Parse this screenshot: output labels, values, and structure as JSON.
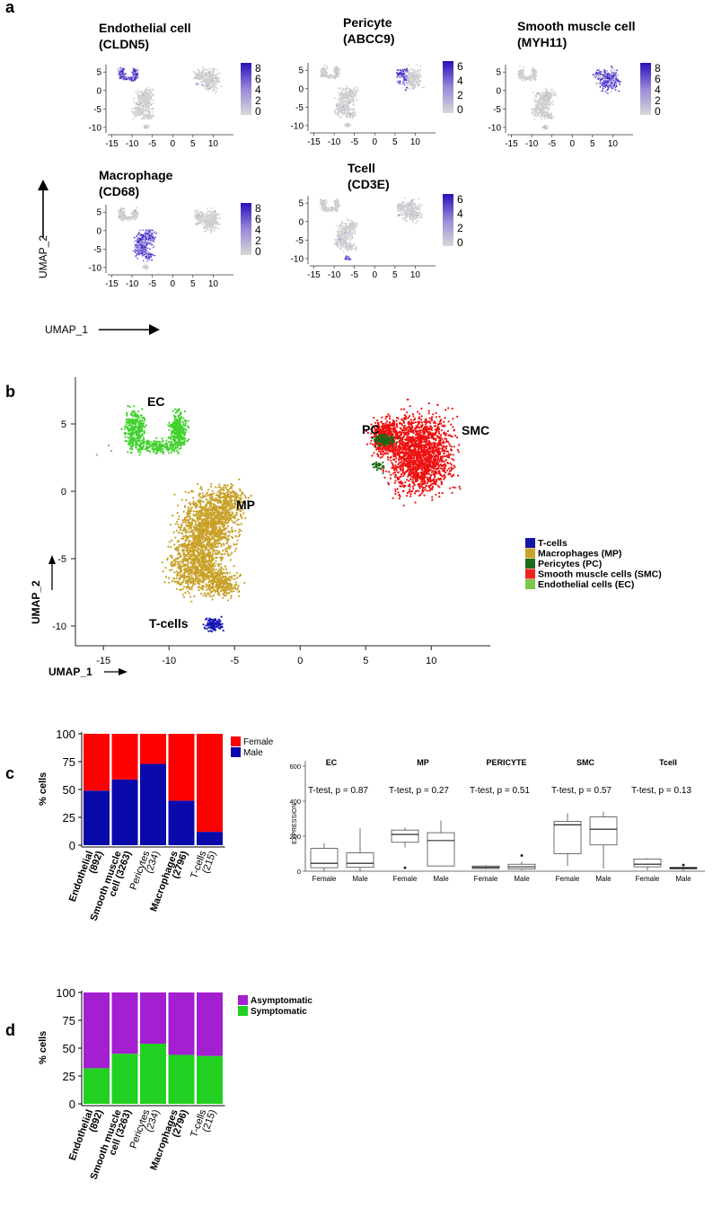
{
  "panel_letters": {
    "a": "a",
    "b": "b",
    "c": "c",
    "d": "d"
  },
  "umap_small_plots": [
    {
      "title1": "Endothelial cell",
      "title2": "(CLDN5)",
      "x_ticks": [
        "-15",
        "-10",
        "-5",
        "0",
        "5",
        "10"
      ],
      "y_ticks": [
        "5",
        "0",
        "-5",
        "-10"
      ],
      "legend_ticks": [
        "8",
        "6",
        "4",
        "2",
        "0"
      ]
    },
    {
      "title1": "Pericyte",
      "title2": "(ABCC9)",
      "x_ticks": [
        "-15",
        "-10",
        "-5",
        "0",
        "5",
        "10"
      ],
      "y_ticks": [
        "5",
        "0",
        "-5",
        "-10"
      ],
      "legend_ticks": [
        "6",
        "4",
        "2",
        "0"
      ]
    },
    {
      "title1": "Smooth muscle cell",
      "title2": "(MYH11)",
      "x_ticks": [
        "-15",
        "-10",
        "-5",
        "0",
        "5",
        "10"
      ],
      "y_ticks": [
        "5",
        "0",
        "-5",
        "-10"
      ],
      "legend_ticks": [
        "8",
        "6",
        "4",
        "2",
        "0"
      ]
    },
    {
      "title1": "Macrophage",
      "title2": "(CD68)",
      "x_ticks": [
        "-15",
        "-10",
        "-5",
        "0",
        "5",
        "10"
      ],
      "y_ticks": [
        "5",
        "0",
        "-5",
        "-10"
      ],
      "legend_ticks": [
        "8",
        "6",
        "4",
        "2",
        "0"
      ]
    },
    {
      "title1": "Tcell",
      "title2": "(CD3E)",
      "x_ticks": [
        "-15",
        "-10",
        "-5",
        "0",
        "5",
        "10"
      ],
      "y_ticks": [
        "5",
        "0",
        "-5",
        "-10"
      ],
      "legend_ticks": [
        "6",
        "4",
        "2",
        "0"
      ]
    }
  ],
  "axis_labels": {
    "umap1": "UMAP_1",
    "umap2": "UMAP_2"
  },
  "umap_main": {
    "x_ticks": [
      "-15",
      "-10",
      "-5",
      "0",
      "5",
      "10"
    ],
    "y_ticks": [
      "5",
      "0",
      "-5",
      "-10"
    ],
    "cluster_labels": {
      "ec": "EC",
      "pc": "PC",
      "smc": "SMC",
      "mp": "MP",
      "tcells": "T-cells"
    },
    "legend": [
      {
        "label": "T-cells",
        "color": "#1414a8"
      },
      {
        "label": "Macrophages (MP)",
        "color": "#c9a227"
      },
      {
        "label": "Pericytes (PC)",
        "color": "#1e6b1e"
      },
      {
        "label": "Smooth muscle cells (SMC)",
        "color": "#ee2222"
      },
      {
        "label": "Endothelial cells (EC)",
        "color": "#7cc84a"
      }
    ]
  },
  "chart_data": [
    {
      "type": "bar",
      "title": "",
      "ylabel": "% cells",
      "ylim": [
        0,
        100
      ],
      "y_ticks": [
        "100",
        "75",
        "50",
        "25",
        "0"
      ],
      "categories": [
        "Endothelial (892)",
        "Smooth muscle cell (3263)",
        "Pericytes (234)",
        "Macrophages (2796)",
        "T-cells (215)"
      ],
      "category_lines": [
        [
          "Endothelial",
          "(892)"
        ],
        [
          "Smooth muscle",
          "cell (3263)"
        ],
        [
          "Pericytes",
          "(234)"
        ],
        [
          "Macrophages",
          "(2796)"
        ],
        [
          "T-cells",
          "(215)"
        ]
      ],
      "series": [
        {
          "name": "Male",
          "color": "#0a0aaa",
          "values": [
            49,
            59,
            73,
            40,
            12
          ]
        },
        {
          "name": "Female",
          "color": "#ff0000",
          "values": [
            51,
            41,
            27,
            60,
            88
          ]
        }
      ],
      "legend": [
        "Female",
        "Male"
      ]
    },
    {
      "type": "box",
      "ylabel": "EXPRESSION",
      "ylim": [
        0,
        600
      ],
      "y_ticks": [
        "600",
        "400",
        "200",
        "0"
      ],
      "groups": [
        {
          "name": "EC",
          "pvalue": "T-test, p = 0.87",
          "boxes": [
            {
              "label": "Female",
              "min": 0,
              "q1": 20,
              "median": 45,
              "q3": 130,
              "max": 160,
              "outliers": []
            },
            {
              "label": "Male",
              "min": 0,
              "q1": 22,
              "median": 45,
              "q3": 105,
              "max": 245,
              "outliers": []
            }
          ]
        },
        {
          "name": "MP",
          "pvalue": "T-test, p = 0.27",
          "boxes": [
            {
              "label": "Female",
              "min": 135,
              "q1": 165,
              "median": 210,
              "q3": 235,
              "max": 250,
              "outliers": [
                20
              ]
            },
            {
              "label": "Male",
              "min": 30,
              "q1": 30,
              "median": 175,
              "q3": 220,
              "max": 290,
              "outliers": []
            }
          ]
        },
        {
          "name": "PERICYTE",
          "pvalue": "T-test, p = 0.51",
          "boxes": [
            {
              "label": "Female",
              "min": 10,
              "q1": 15,
              "median": 22,
              "q3": 30,
              "max": 35,
              "outliers": []
            },
            {
              "label": "Male",
              "min": 5,
              "q1": 12,
              "median": 25,
              "q3": 40,
              "max": 55,
              "outliers": [
                90
              ]
            }
          ]
        },
        {
          "name": "SMC",
          "pvalue": "T-test, p = 0.57",
          "boxes": [
            {
              "label": "Female",
              "min": 30,
              "q1": 100,
              "median": 265,
              "q3": 285,
              "max": 330,
              "outliers": []
            },
            {
              "label": "Male",
              "min": 15,
              "q1": 150,
              "median": 240,
              "q3": 310,
              "max": 340,
              "outliers": []
            }
          ]
        },
        {
          "name": "Tcell",
          "pvalue": "T-test, p = 0.13",
          "boxes": [
            {
              "label": "Female",
              "min": 5,
              "q1": 25,
              "median": 40,
              "q3": 70,
              "max": 75,
              "outliers": []
            },
            {
              "label": "Male",
              "min": 3,
              "q1": 12,
              "median": 18,
              "q3": 22,
              "max": 25,
              "outliers": [
                35
              ]
            }
          ]
        }
      ]
    },
    {
      "type": "bar",
      "ylabel": "% cells",
      "ylim": [
        0,
        100
      ],
      "y_ticks": [
        "100",
        "75",
        "50",
        "25",
        "0"
      ],
      "categories": [
        "Endothelial (892)",
        "Smooth muscle cell (3263)",
        "Pericytes (234)",
        "Macrophages (2796)",
        "T-cells (215)"
      ],
      "category_lines": [
        [
          "Endothelial",
          "(892)"
        ],
        [
          "Smooth muscle",
          "cell (3263)"
        ],
        [
          "Pericytes",
          "(234)"
        ],
        [
          "Macrophages",
          "(2796)"
        ],
        [
          "T-cells",
          "(215)"
        ]
      ],
      "series": [
        {
          "name": "Symptomatic",
          "color": "#22d022",
          "values": [
            32,
            45,
            54,
            44,
            43
          ]
        },
        {
          "name": "Asymptomatic",
          "color": "#a31fd0",
          "values": [
            68,
            55,
            46,
            56,
            57
          ]
        }
      ],
      "legend": [
        "Asymptomatic",
        "Symptomatic"
      ]
    }
  ]
}
